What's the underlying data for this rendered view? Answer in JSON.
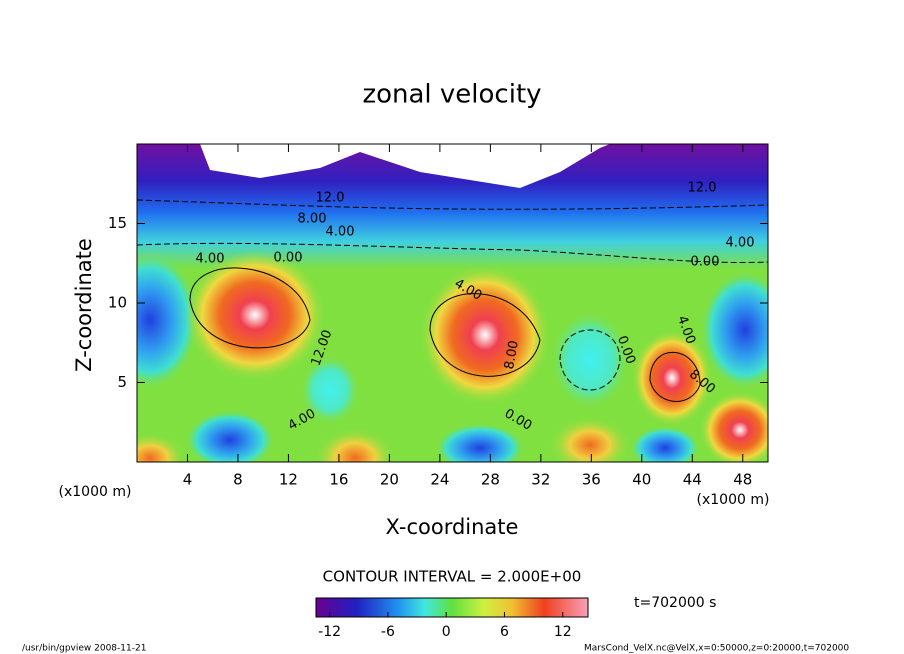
{
  "chart_data": {
    "type": "contour",
    "title": "zonal velocity",
    "x_label": "X-coordinate",
    "y_label": "Z-coordinate",
    "x_unit": "(x1000 m)",
    "xlim": [
      0,
      50
    ],
    "ylim": [
      0,
      20
    ],
    "xticks": [
      4,
      8,
      12,
      16,
      20,
      24,
      28,
      32,
      36,
      40,
      44,
      48
    ],
    "yticks": [
      5,
      10,
      15
    ],
    "contour_interval": "CONTOUR INTERVAL = 2.000E+00",
    "contour_labels": [
      "12.0",
      "8.00",
      "4.00",
      "0.00",
      "4.00",
      "12.0",
      "4.00",
      "0.00",
      "4.00",
      "8.00",
      "0.00",
      "4.00",
      "0.00",
      "4.00",
      "12.00",
      "8.00"
    ],
    "clim": [
      -13.4,
      14.6
    ],
    "colorbar_ticks": [
      -12,
      -6,
      0,
      6,
      12
    ],
    "time_label": "t=702000 s",
    "footer_left": "/usr/bin/gpview  2008-11-21",
    "footer_right": "MarsCond_VelX.nc@VelX,x=0:50000,z=0:20000,t=702000"
  }
}
